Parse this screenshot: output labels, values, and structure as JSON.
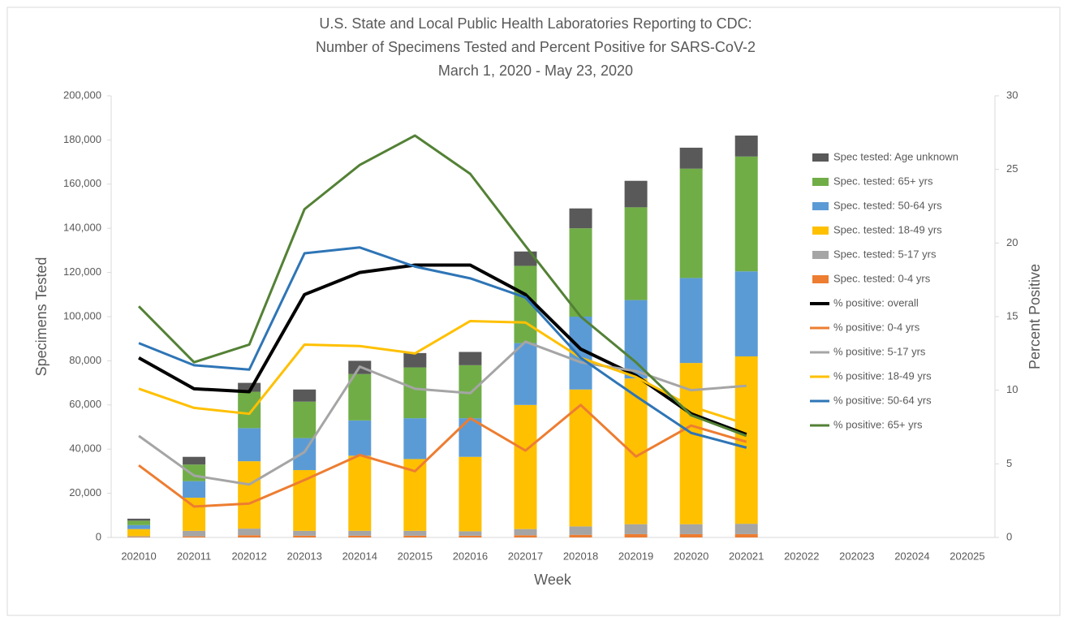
{
  "chart_data": {
    "type": "combo",
    "title": [
      "U.S. State and Local Public Health Laboratories Reporting to CDC:",
      "Number of Specimens Tested and Percent Positive for SARS-CoV-2",
      "March 1, 2020 - May 23, 2020"
    ],
    "x_label": "Week",
    "y_label": "Specimens Tested",
    "y2_label": "Percent Positive",
    "categories": [
      "202010",
      "202011",
      "202012",
      "202013",
      "202014",
      "202015",
      "202016",
      "202017",
      "202018",
      "202019",
      "202020",
      "202021",
      "202022",
      "202023",
      "202024",
      "202025"
    ],
    "ylim": [
      0,
      200000
    ],
    "yticks": [
      0,
      {
        "value": 20000,
        "label": "20,000"
      },
      {
        "value": 40000,
        "label": "40,000"
      },
      {
        "value": 60000,
        "label": "60,000"
      },
      {
        "value": 80000,
        "label": "80,000"
      },
      {
        "value": 100000,
        "label": "100,000"
      },
      {
        "value": 120000,
        "label": "120,000"
      },
      {
        "value": 140000,
        "label": "140,000"
      },
      {
        "value": 160000,
        "label": "160,000"
      },
      {
        "value": 180000,
        "label": "180,000"
      },
      {
        "value": 200000,
        "label": "200,000"
      }
    ],
    "y2lim": [
      0,
      30
    ],
    "y2ticks": [
      0,
      5,
      10,
      15,
      20,
      25,
      30
    ],
    "legend": "right",
    "series": [
      {
        "name": "Spec tested: Age unknown",
        "kind": "bar",
        "color": "#595959",
        "values": [
          900,
          3500,
          4000,
          5500,
          6000,
          6500,
          6000,
          6500,
          9000,
          12000,
          9500,
          9500,
          null,
          null,
          null,
          null
        ]
      },
      {
        "name": "Spec. tested: 65+ yrs",
        "kind": "bar",
        "color": "#70ad47",
        "values": [
          2000,
          7500,
          16500,
          16500,
          21000,
          23000,
          24000,
          35000,
          40000,
          42000,
          49500,
          52000,
          null,
          null,
          null,
          null
        ]
      },
      {
        "name": "Spec. tested: 50-64 yrs",
        "kind": "bar",
        "color": "#5b9bd5",
        "values": [
          1800,
          7500,
          15000,
          14500,
          16000,
          18500,
          17500,
          28000,
          33000,
          35500,
          38500,
          38500,
          null,
          null,
          null,
          null
        ]
      },
      {
        "name": "Spec. tested: 18-49 yrs",
        "kind": "bar",
        "color": "#ffc000",
        "values": [
          3200,
          15000,
          30500,
          27500,
          34000,
          32500,
          33700,
          56200,
          62000,
          66000,
          73000,
          75800,
          null,
          null,
          null,
          null
        ]
      },
      {
        "name": "Spec. tested: 5-17 yrs",
        "kind": "bar",
        "color": "#a5a5a5",
        "values": [
          400,
          2500,
          3000,
          2200,
          2200,
          2200,
          2000,
          2800,
          3800,
          4500,
          4500,
          4700,
          null,
          null,
          null,
          null
        ]
      },
      {
        "name": "Spec. tested: 0-4 yrs",
        "kind": "bar",
        "color": "#ed7d31",
        "values": [
          200,
          500,
          1000,
          800,
          800,
          800,
          800,
          1000,
          1200,
          1500,
          1500,
          1500,
          null,
          null,
          null,
          null
        ]
      },
      {
        "name": "% positive: overall",
        "kind": "line",
        "axis": "y2",
        "color": "#000000",
        "values": [
          12.2,
          10.1,
          9.9,
          16.5,
          18.0,
          18.5,
          18.5,
          16.5,
          12.8,
          11.0,
          8.4,
          7.0,
          null,
          null,
          null,
          null
        ]
      },
      {
        "name": "% positive: 0-4 yrs",
        "kind": "line",
        "axis": "y2",
        "color": "#ed7d31",
        "values": [
          4.9,
          2.1,
          2.3,
          3.9,
          5.6,
          4.5,
          8.1,
          5.9,
          9.0,
          5.5,
          7.6,
          6.5,
          null,
          null,
          null,
          null
        ]
      },
      {
        "name": "% positive: 5-17 yrs",
        "kind": "line",
        "axis": "y2",
        "color": "#a5a5a5",
        "values": [
          6.9,
          4.2,
          3.6,
          5.8,
          11.6,
          10.1,
          9.8,
          13.3,
          11.9,
          11.3,
          10.0,
          10.3,
          null,
          null,
          null,
          null
        ]
      },
      {
        "name": "% positive: 18-49 yrs",
        "kind": "line",
        "axis": "y2",
        "color": "#ffc000",
        "values": [
          10.1,
          8.8,
          8.4,
          13.1,
          13.0,
          12.5,
          14.7,
          14.6,
          12.2,
          10.9,
          8.9,
          7.7,
          null,
          null,
          null,
          null
        ]
      },
      {
        "name": "% positive: 50-64 yrs",
        "kind": "line",
        "axis": "y2",
        "color": "#2e75b6",
        "values": [
          13.2,
          11.7,
          11.4,
          19.3,
          19.7,
          18.4,
          17.6,
          16.3,
          12.2,
          9.6,
          7.1,
          6.1,
          null,
          null,
          null,
          null
        ]
      },
      {
        "name": "% positive: 65+ yrs",
        "kind": "line",
        "axis": "y2",
        "color": "#538135",
        "values": [
          15.7,
          11.9,
          13.1,
          22.3,
          25.3,
          27.3,
          24.7,
          19.8,
          15.0,
          11.9,
          8.3,
          6.9,
          null,
          null,
          null,
          null
        ]
      }
    ]
  }
}
